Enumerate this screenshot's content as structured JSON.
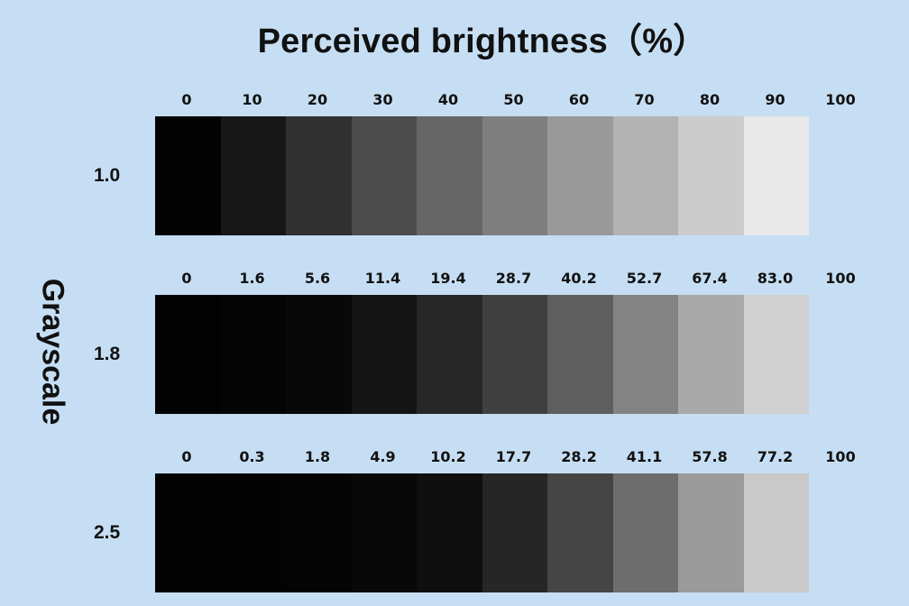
{
  "title": "Perceived brightness（%）",
  "y_axis_label": "Grayscale",
  "rows": [
    {
      "label": "1.0",
      "ticks": [
        "0",
        "10",
        "20",
        "30",
        "40",
        "50",
        "60",
        "70",
        "80",
        "90",
        "100"
      ],
      "swatch_colors": [
        "#030303",
        "#171717",
        "#303030",
        "#4b4b4b",
        "#666666",
        "#7f7f7f",
        "#999999",
        "#b3b3b3",
        "#cccccc",
        "#e9e9e9"
      ]
    },
    {
      "label": "1.8",
      "ticks": [
        "0",
        "1.6",
        "5.6",
        "11.4",
        "19.4",
        "28.7",
        "40.2",
        "52.7",
        "67.4",
        "83.0",
        "100"
      ],
      "swatch_colors": [
        "#020202",
        "#040404",
        "#080808",
        "#141414",
        "#272727",
        "#404040",
        "#5e5e5e",
        "#838383",
        "#a9a9a9",
        "#d0d0d0"
      ]
    },
    {
      "label": "2.5",
      "ticks": [
        "0",
        "0.3",
        "1.8",
        "4.9",
        "10.2",
        "17.7",
        "28.2",
        "41.1",
        "57.8",
        "77.2",
        "100"
      ],
      "swatch_colors": [
        "#020202",
        "#030303",
        "#040404",
        "#080808",
        "#0f0f0f",
        "#262626",
        "#454545",
        "#6d6d6d",
        "#9b9b9b",
        "#c9c9c9"
      ]
    }
  ]
}
